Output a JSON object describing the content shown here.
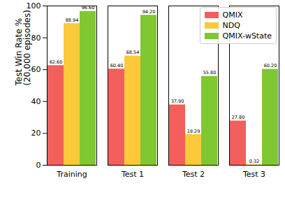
{
  "chart_data": {
    "type": "bar",
    "y_label": "Test Win Rate %\n(20,000 episodes)",
    "categories": [
      "Training",
      "Test 1",
      "Test 2",
      "Test 3"
    ],
    "series": [
      {
        "name": "QMIX",
        "color": "#f25f5c",
        "values": [
          62.6,
          60.4,
          37.9,
          27.8
        ],
        "value_labels": [
          "62.60",
          "60.40",
          "37.90",
          "27.80"
        ]
      },
      {
        "name": "NDQ",
        "color": "#fcc93a",
        "values": [
          88.94,
          68.54,
          19.29,
          0.32
        ]
      },
      {
        "name": "QMIX-wState",
        "color": "#7fc832",
        "values": [
          96.6,
          94.2,
          55.8,
          60.2
        ],
        "value_labels": [
          "96.60",
          "94.20",
          "55.80",
          "60.20"
        ]
      }
    ],
    "ylim": [
      0,
      100
    ],
    "yticks": [
      0,
      20,
      40,
      60,
      80,
      100
    ],
    "grid": false,
    "legend": "upper right",
    "data_labels": true
  }
}
